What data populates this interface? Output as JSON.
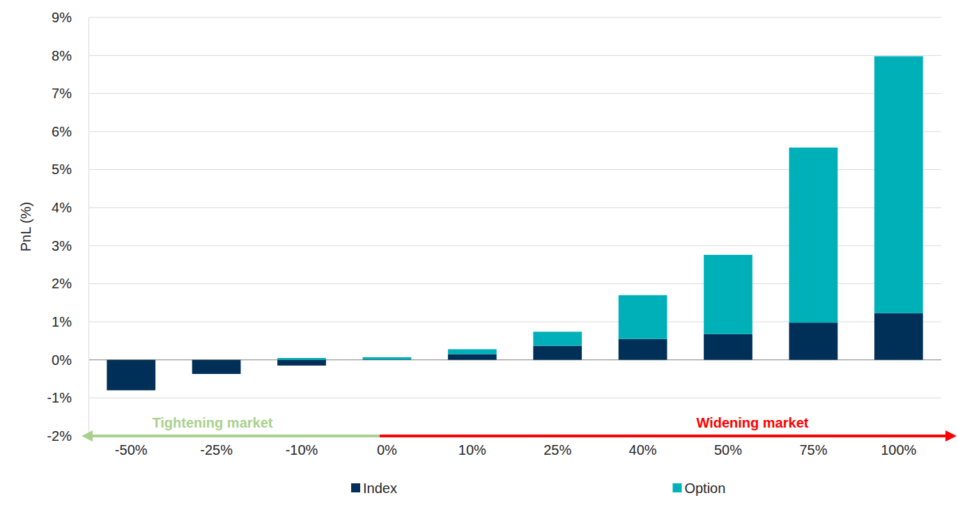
{
  "chart_data": {
    "type": "bar",
    "stacked": true,
    "grid": true,
    "legend": "bottom",
    "y_label": "PnL (%)",
    "categories": [
      "-50%",
      "-25%",
      "-10%",
      "0%",
      "10%",
      "25%",
      "40%",
      "50%",
      "75%",
      "100%"
    ],
    "series": [
      {
        "name": "Index",
        "color": "#003057",
        "values": [
          -0.8,
          -0.37,
          -0.15,
          0.01,
          0.15,
          0.37,
          0.55,
          0.68,
          0.98,
          1.23
        ]
      },
      {
        "name": "Option",
        "color": "#00b0b9",
        "values": [
          0,
          0,
          0.05,
          0.06,
          0.13,
          0.37,
          1.15,
          2.08,
          4.6,
          6.75
        ]
      }
    ],
    "ylim": [
      -2,
      9
    ],
    "yticks": [
      {
        "value": -2,
        "label": "-2%"
      },
      {
        "value": -1,
        "label": "-1%"
      },
      {
        "value": 0,
        "label": "0%"
      },
      {
        "value": 1,
        "label": "1%"
      },
      {
        "value": 2,
        "label": "2%"
      },
      {
        "value": 3,
        "label": "3%"
      },
      {
        "value": 4,
        "label": "4%"
      },
      {
        "value": 5,
        "label": "5%"
      },
      {
        "value": 6,
        "label": "6%"
      },
      {
        "value": 7,
        "label": "7%"
      },
      {
        "value": 8,
        "label": "8%"
      },
      {
        "value": 9,
        "label": "9%"
      }
    ],
    "annotations": [
      {
        "text": "Tightening market",
        "color": "#a9d18e"
      },
      {
        "text": "Widening market",
        "color": "#ff0000"
      }
    ]
  }
}
